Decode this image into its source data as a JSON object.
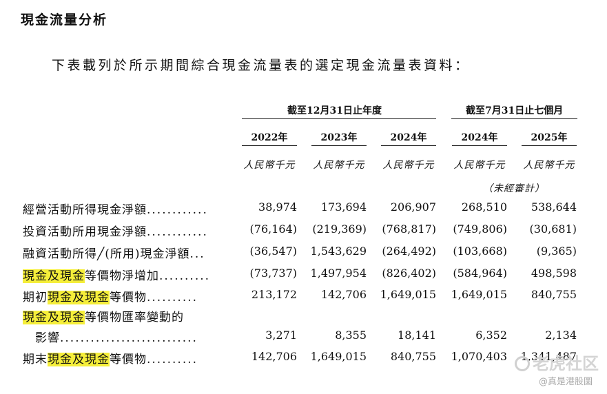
{
  "title": "現金流量分析",
  "intro": "下表載列於所示期間綜合現金流量表的選定現金流量表資料：",
  "headers": {
    "group1": "截至12月31日止年度",
    "group2": "截至7月31日止七個月",
    "years": [
      "2022年",
      "2023年",
      "2024年",
      "2024年",
      "2025年"
    ],
    "unit": "人民幣千元",
    "unaudited": "（未經審計）"
  },
  "rows": [
    {
      "label_pre": "經營活動所得現金淨額",
      "label_hl": "",
      "label_post": "",
      "dots": "............",
      "values": [
        "38,974",
        "173,694",
        "206,907",
        "268,510",
        "538,644"
      ]
    },
    {
      "label_pre": "投資活動所用現金淨額",
      "label_hl": "",
      "label_post": "",
      "dots": "............",
      "values": [
        "(76,164)",
        "(219,369)",
        "(768,817)",
        "(749,806)",
        "(30,681)"
      ]
    },
    {
      "label_pre": "融資活動所得╱(所用)現金淨額",
      "label_hl": "",
      "label_post": "",
      "dots": "...",
      "values": [
        "(36,547)",
        "1,543,629",
        "(264,492)",
        "(103,668)",
        "(9,365)"
      ]
    },
    {
      "label_pre": "",
      "label_hl": "現金及現金",
      "label_post": "等價物淨增加",
      "dots": "..........",
      "values": [
        "(73,737)",
        "1,497,954",
        "(826,402)",
        "(584,964)",
        "498,598"
      ]
    },
    {
      "label_pre": "期初",
      "label_hl": "現金及現金",
      "label_post": "等價物",
      "dots": "..........",
      "values": [
        "213,172",
        "142,706",
        "1,649,015",
        "1,649,015",
        "840,755"
      ]
    },
    {
      "label_pre": "",
      "label_hl": "現金及現金",
      "label_post": "等價物匯率變動的",
      "dots": "",
      "values": []
    },
    {
      "label_pre": "　影響",
      "label_hl": "",
      "label_post": "",
      "dots": "...........................",
      "values": [
        "3,271",
        "8,355",
        "18,141",
        "6,352",
        "2,134"
      ]
    },
    {
      "label_pre": "期末",
      "label_hl": "現金及現金",
      "label_post": "等價物",
      "dots": "..........",
      "values": [
        "142,706",
        "1,649,015",
        "840,755",
        "1,070,403",
        "1,341,487"
      ]
    }
  ],
  "watermark": {
    "brand": "老虎社区",
    "handle": "@真是港股圖"
  }
}
